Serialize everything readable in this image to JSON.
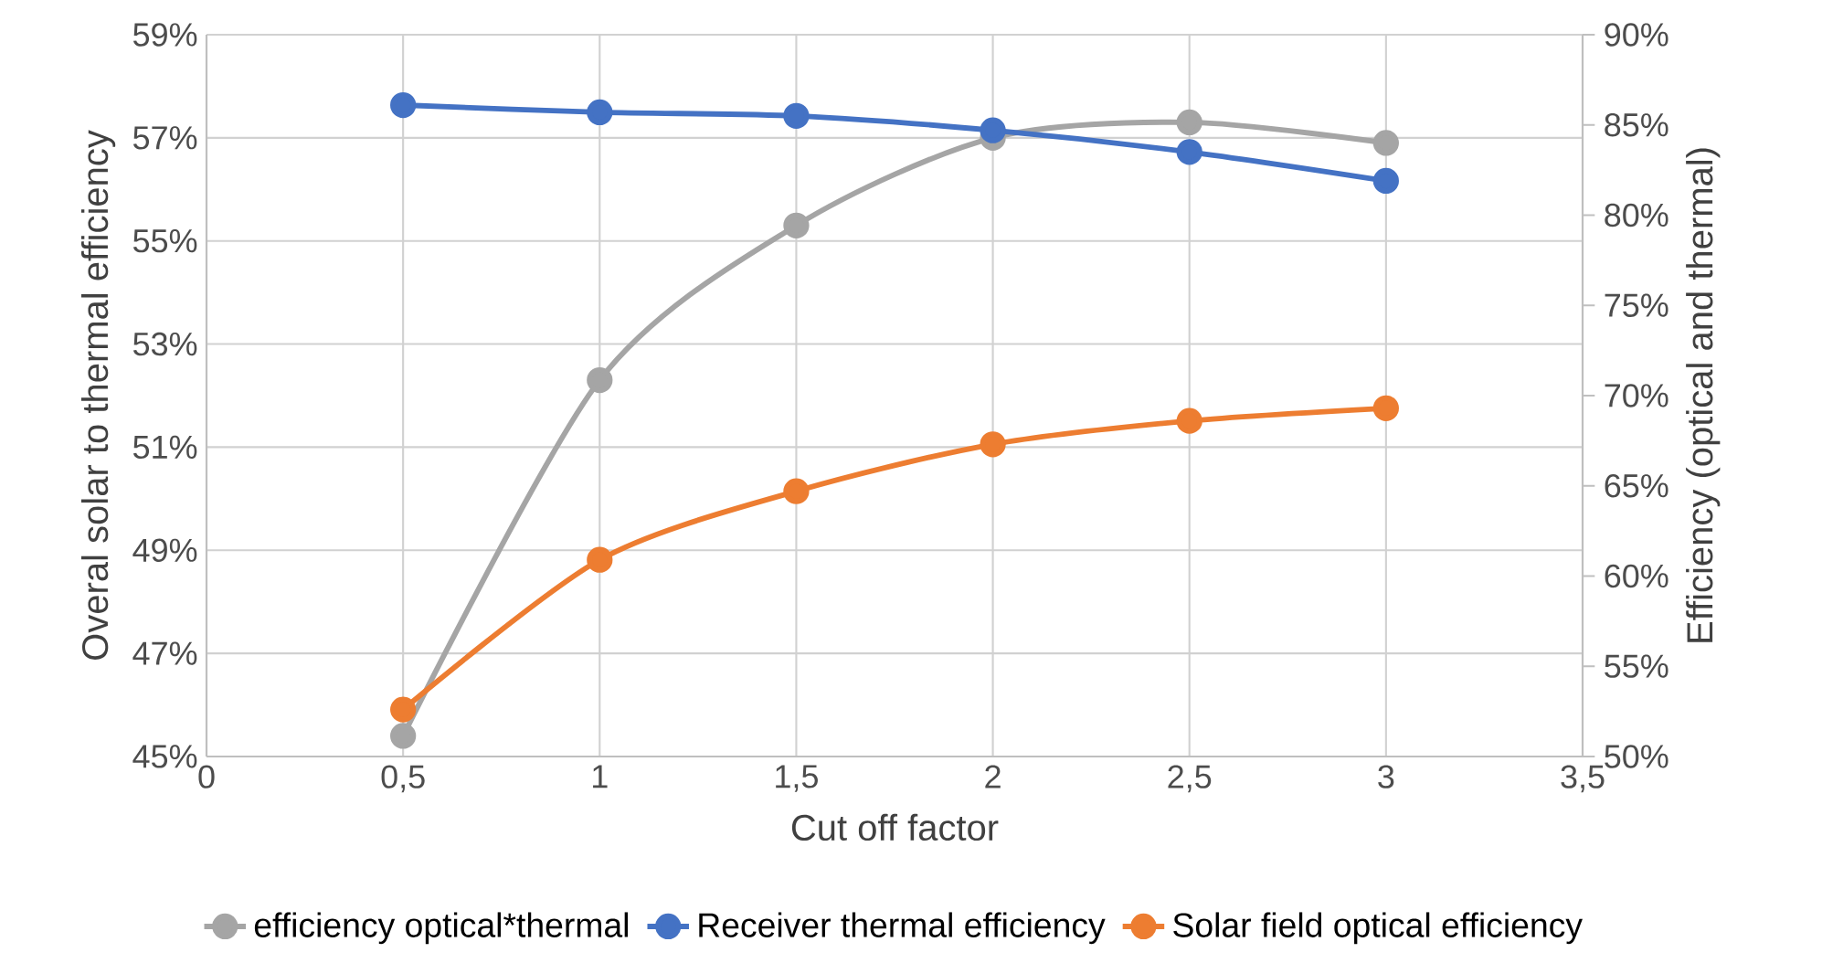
{
  "chart_data": {
    "type": "line",
    "xlabel": "Cut off factor",
    "ylabel": "Overal solar to thermal efficiency",
    "y2label": "Efficiency (optical and thermal)",
    "x": [
      0.5,
      1,
      1.5,
      2,
      2.5,
      3
    ],
    "series": [
      {
        "name": "efficiency optical*thermal",
        "color": "#a5a5a5",
        "values": [
          45.4,
          52.3,
          55.3,
          57.0,
          57.3,
          56.9
        ]
      },
      {
        "name": "Receiver thermal efficiency",
        "color": "#4472c4",
        "axis": "y2",
        "values": [
          86.1,
          85.7,
          85.5,
          84.7,
          83.5,
          81.9
        ]
      },
      {
        "name": "Solar field optical efficiency",
        "color": "#ed7d31",
        "axis": "y2",
        "values": [
          52.6,
          60.9,
          64.7,
          67.3,
          68.6,
          69.3
        ]
      }
    ],
    "xlim": [
      0,
      3.5
    ],
    "xticks": [
      0,
      {
        "value": 0.5,
        "label": "0,5"
      },
      1,
      {
        "value": 1.5,
        "label": "1,5"
      },
      2,
      {
        "value": 2.5,
        "label": "2,5"
      },
      3,
      {
        "value": 3.5,
        "label": "3,5"
      }
    ],
    "ylim": [
      45,
      59
    ],
    "yticks": [
      {
        "value": 45,
        "label": "45%"
      },
      {
        "value": 47,
        "label": "47%"
      },
      {
        "value": 49,
        "label": "49%"
      },
      {
        "value": 51,
        "label": "51%"
      },
      {
        "value": 53,
        "label": "53%"
      },
      {
        "value": 55,
        "label": "55%"
      },
      {
        "value": 57,
        "label": "57%"
      },
      {
        "value": 59,
        "label": "59%"
      }
    ],
    "y2lim": [
      50,
      90
    ],
    "y2ticks": [
      {
        "value": 50,
        "label": "50%"
      },
      {
        "value": 55,
        "label": "55%"
      },
      {
        "value": 60,
        "label": "60%"
      },
      {
        "value": 65,
        "label": "65%"
      },
      {
        "value": 70,
        "label": "70%"
      },
      {
        "value": 75,
        "label": "75%"
      },
      {
        "value": 80,
        "label": "80%"
      },
      {
        "value": 85,
        "label": "85%"
      },
      {
        "value": 90,
        "label": "90%"
      }
    ],
    "grid": true,
    "legend": "bottom",
    "marker": "circle",
    "line_style": "solid"
  }
}
